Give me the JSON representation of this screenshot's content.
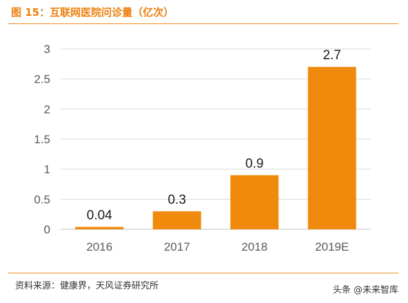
{
  "figure": {
    "title": "图 15：互联网医院问诊量（亿次）",
    "source": "资料来源：健康界，天风证券研究所",
    "watermark": "头条 @未来智库"
  },
  "colors": {
    "accent": "#ec7f0d",
    "bar": "#f08a0c",
    "grid": "#d9d9d9",
    "axis": "#bfbfbf"
  },
  "chart_data": {
    "type": "bar",
    "categories": [
      "2016",
      "2017",
      "2018",
      "2019E"
    ],
    "values": [
      0.04,
      0.3,
      0.9,
      2.7
    ],
    "data_labels": [
      "0.04",
      "0.3",
      "0.9",
      "2.7"
    ],
    "yticks": [
      "0",
      "0.5",
      "1",
      "1.5",
      "2",
      "2.5",
      "3"
    ],
    "ylim": [
      0,
      3
    ],
    "grid": true,
    "legend": "none"
  }
}
